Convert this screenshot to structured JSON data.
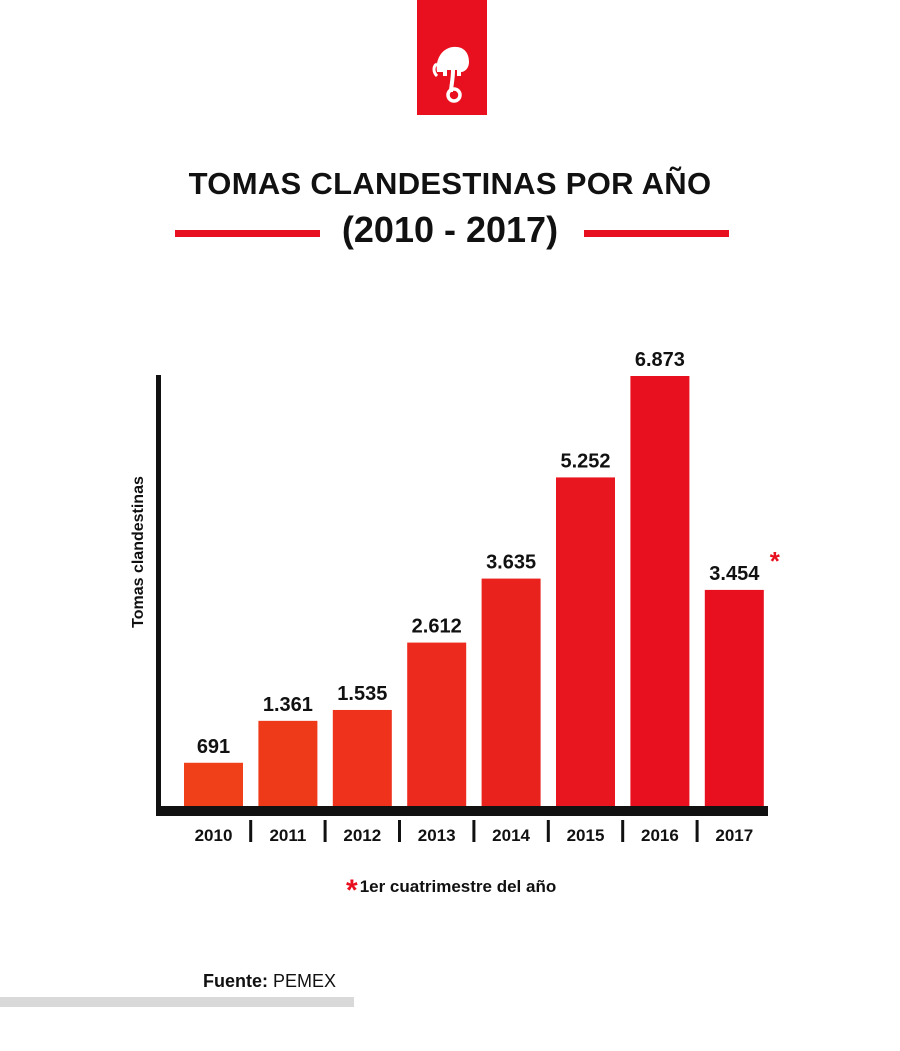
{
  "header": {
    "title": "TOMAS CLANDESTINAS POR AÑO",
    "subtitle": "(2010 - 2017)"
  },
  "logo": {
    "icon": "elephant-icon",
    "color": "#e8101e"
  },
  "chart_data": {
    "type": "bar",
    "title": "TOMAS CLANDESTINAS POR AÑO",
    "subtitle": "(2010 - 2017)",
    "xlabel": "",
    "ylabel": "Tomas clandestinas",
    "categories": [
      "2010",
      "2011",
      "2012",
      "2013",
      "2014",
      "2015",
      "2016",
      "2017"
    ],
    "values": [
      691,
      1361,
      1535,
      2612,
      3635,
      5252,
      6873,
      3454
    ],
    "value_labels": [
      "691",
      "1.361",
      "1.535",
      "2.612",
      "3.635",
      "5.252",
      "6.873",
      "3.454"
    ],
    "ylim": [
      0,
      6873
    ],
    "grid": false,
    "annotations": [
      {
        "category": "2017",
        "text": "*"
      }
    ],
    "colors": [
      "#f0401a",
      "#ef3a1a",
      "#ee321b",
      "#ec2a1d",
      "#ea221e",
      "#e8161f",
      "#e8101e",
      "#e8101e"
    ]
  },
  "footnote": {
    "mark": "*",
    "text": "1er cuatrimestre del año"
  },
  "source": {
    "label": "Fuente:",
    "value": "PEMEX"
  }
}
